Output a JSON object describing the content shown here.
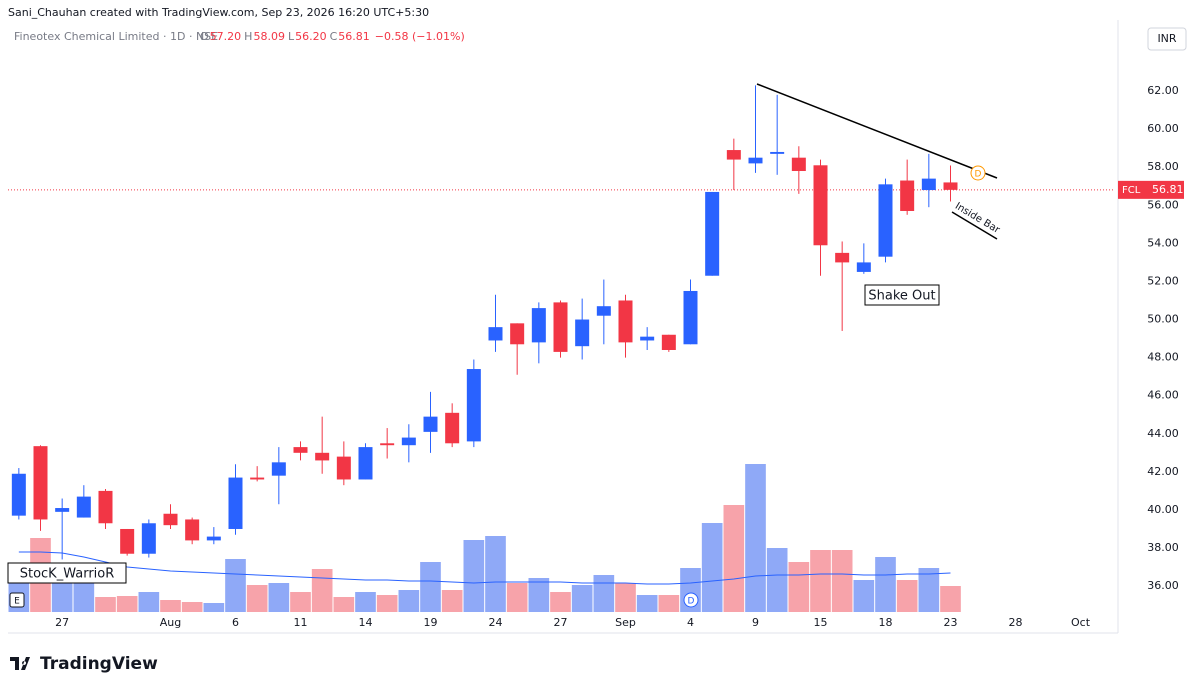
{
  "header": {
    "credit": "Sani_Chauhan created with TradingView.com, Sep 23, 2026 16:20 UTC+5:30",
    "symbol": "Fineotex Chemical Limited · 1D · NSE",
    "ohlc": [
      {
        "label": "O",
        "value": "57.20"
      },
      {
        "label": "H",
        "value": "58.09"
      },
      {
        "label": "L",
        "value": "56.20"
      },
      {
        "label": "C",
        "value": "56.81"
      }
    ],
    "change": "−0.58 (−1.01%)",
    "currency": "INR"
  },
  "annotations": {
    "shake_out": "Shake Out",
    "inside_bar": "Inside Bar",
    "author": "StocK_WarrioR",
    "earnings": "E",
    "dividend": "D",
    "alert": "D"
  },
  "footer": {
    "logo": "TradingView"
  },
  "chart_data": {
    "type": "candlestick",
    "categories": [
      null,
      null,
      "27",
      null,
      null,
      null,
      null,
      "Aug",
      null,
      null,
      "6",
      null,
      null,
      "11",
      null,
      null,
      "14",
      null,
      null,
      "19",
      null,
      null,
      "24",
      null,
      null,
      "27",
      null,
      null,
      "Sep",
      null,
      null,
      "4",
      null,
      null,
      "9",
      null,
      null,
      "15",
      null,
      null,
      "18",
      null,
      null,
      "23",
      null,
      null,
      "28",
      null,
      null,
      "Oct",
      null
    ],
    "open": [
      39.7,
      43.35,
      39.9,
      39.6,
      41.0,
      39.0,
      37.7,
      39.8,
      39.5,
      38.4,
      39.0,
      41.7,
      41.8,
      43.3,
      43.0,
      42.8,
      41.6,
      43.5,
      43.4,
      44.1,
      45.1,
      43.6,
      48.9,
      49.8,
      48.8,
      50.9,
      48.6,
      50.2,
      51.0,
      48.9,
      49.2,
      48.7,
      52.3,
      58.9,
      58.2,
      58.7,
      58.5,
      58.1,
      53.5,
      52.5,
      53.3,
      57.3,
      56.8,
      57.2,
      null,
      null,
      null,
      null,
      null,
      null,
      null
    ],
    "high": [
      42.2,
      43.4,
      40.6,
      41.3,
      41.1,
      39.0,
      39.5,
      40.3,
      39.6,
      39.1,
      42.4,
      42.3,
      43.3,
      43.6,
      44.9,
      43.6,
      43.5,
      44.3,
      44.5,
      46.2,
      45.6,
      47.9,
      51.3,
      49.8,
      50.9,
      51.0,
      51.1,
      52.1,
      51.3,
      49.6,
      49.2,
      52.1,
      56.7,
      59.5,
      62.3,
      61.8,
      59.1,
      58.4,
      54.1,
      54.0,
      57.4,
      58.4,
      58.7,
      58.09,
      null,
      null,
      null,
      null,
      null,
      null,
      null
    ],
    "low": [
      39.5,
      38.9,
      37.4,
      39.6,
      39.0,
      37.6,
      37.5,
      39.0,
      38.2,
      38.2,
      38.7,
      41.5,
      40.3,
      42.6,
      41.9,
      41.3,
      41.6,
      42.7,
      42.5,
      43.0,
      43.3,
      43.3,
      48.3,
      47.1,
      47.7,
      48.0,
      47.9,
      48.7,
      48.0,
      48.4,
      48.3,
      48.7,
      52.3,
      56.8,
      57.7,
      57.6,
      56.6,
      52.3,
      49.4,
      52.4,
      53.0,
      55.5,
      55.9,
      56.2,
      null,
      null,
      null,
      null,
      null,
      null,
      null
    ],
    "close": [
      41.9,
      39.5,
      40.1,
      40.7,
      39.3,
      37.7,
      39.3,
      39.2,
      38.4,
      38.6,
      41.7,
      41.6,
      42.5,
      43.0,
      42.6,
      41.6,
      43.3,
      43.4,
      43.8,
      44.9,
      43.5,
      47.4,
      49.6,
      48.7,
      50.6,
      48.3,
      50.0,
      50.7,
      48.8,
      49.1,
      48.4,
      51.5,
      56.7,
      58.4,
      58.5,
      58.8,
      57.8,
      53.9,
      53.0,
      53.0,
      57.1,
      55.7,
      57.4,
      56.81,
      null,
      null,
      null,
      null,
      null,
      null,
      null
    ],
    "up_color": "#2962ff",
    "down_color": "#f23645",
    "ylim": [
      34.64,
      64.68
    ],
    "yticks": [
      {
        "value": 36,
        "label": "36.00"
      },
      {
        "value": 38,
        "label": "38.00"
      },
      {
        "value": 40,
        "label": "40.00"
      },
      {
        "value": 42,
        "label": "42.00"
      },
      {
        "value": 44,
        "label": "44.00"
      },
      {
        "value": 46,
        "label": "46.00"
      },
      {
        "value": 48,
        "label": "48.00"
      },
      {
        "value": 50,
        "label": "50.00"
      },
      {
        "value": 52,
        "label": "52.00"
      },
      {
        "value": 54,
        "label": "54.00"
      },
      {
        "value": 56,
        "label": "56.00"
      },
      {
        "value": 58,
        "label": "58.00"
      },
      {
        "value": 60,
        "label": "60.00"
      },
      {
        "value": 62,
        "label": "62.00"
      }
    ],
    "last_price": {
      "symbol": "FCL",
      "value": 56.81,
      "label": "56.81",
      "color": "#f23645"
    },
    "volume": {
      "values": [
        47,
        74,
        37,
        34,
        15,
        16,
        20,
        12,
        10,
        9,
        53,
        27,
        29,
        20,
        43,
        15,
        20,
        17,
        22,
        50,
        22,
        72,
        76,
        29,
        34,
        20,
        27,
        37,
        29,
        17,
        17,
        44,
        89,
        107,
        148,
        64,
        50,
        62,
        62,
        32,
        55,
        32,
        44,
        26,
        null,
        null,
        null,
        null,
        null,
        null,
        null
      ],
      "ma": [
        60,
        60,
        59,
        55,
        50,
        45,
        43,
        41,
        40,
        39,
        38,
        37,
        36,
        35,
        34,
        33,
        32,
        32,
        31,
        31,
        30,
        29,
        30,
        30,
        30,
        30,
        29,
        29,
        29,
        28,
        28,
        29,
        31,
        33,
        36,
        37,
        37,
        38,
        38,
        37,
        37,
        38,
        38,
        39,
        null,
        null,
        null,
        null,
        null,
        null,
        null
      ],
      "ylim": [
        0,
        572
      ],
      "up_color": "#8fa9f7",
      "down_color": "#f7a3aa",
      "ma_color": "#2962ff"
    }
  }
}
